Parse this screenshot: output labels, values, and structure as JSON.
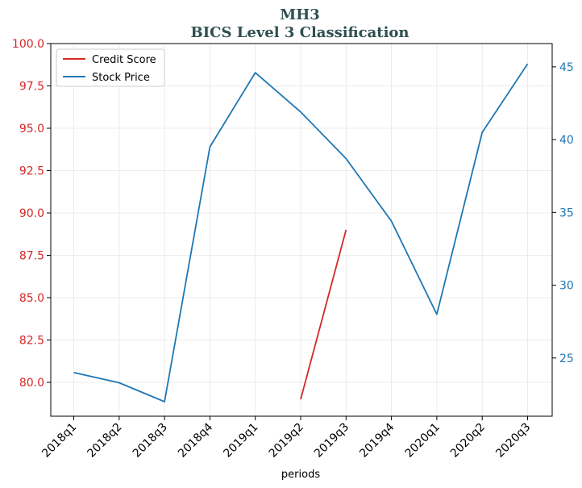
{
  "chart_data": {
    "type": "line",
    "title": "MH3",
    "subtitle": "BICS Level 3 Classification",
    "xlabel": "periods",
    "categories": [
      "2018q1",
      "2018q2",
      "2018q3",
      "2018q4",
      "2019q1",
      "2019q2",
      "2019q3",
      "2019q4",
      "2020q1",
      "2020q2",
      "2020q3"
    ],
    "y_left": {
      "ylim": [
        78.0,
        100.0
      ],
      "ticks": [
        80.0,
        82.5,
        85.0,
        87.5,
        90.0,
        92.5,
        95.0,
        97.5,
        100.0
      ],
      "tick_labels": [
        "80.0",
        "82.5",
        "85.0",
        "87.5",
        "90.0",
        "92.5",
        "95.0",
        "97.5",
        "100.0"
      ],
      "color": "#d62728"
    },
    "y_right": {
      "ylim": [
        21.0,
        46.6
      ],
      "ticks": [
        25,
        30,
        35,
        40,
        45
      ],
      "tick_labels": [
        "25",
        "30",
        "35",
        "40",
        "45"
      ],
      "color": "#1f77b4"
    },
    "series": [
      {
        "name": "Credit Score",
        "axis": "left",
        "color": "#d62728",
        "values": [
          null,
          null,
          null,
          null,
          null,
          79.0,
          89.0,
          null,
          null,
          null,
          null
        ]
      },
      {
        "name": "Stock Price",
        "axis": "right",
        "color": "#1f77b4",
        "values": [
          24.0,
          23.3,
          22.0,
          39.5,
          44.6,
          41.9,
          38.7,
          34.4,
          28.0,
          40.5,
          45.2
        ]
      }
    ],
    "legend": {
      "placement": "top-left"
    },
    "grid": true
  }
}
